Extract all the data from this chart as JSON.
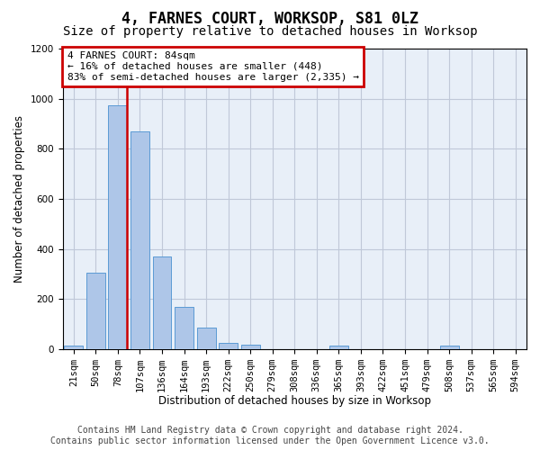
{
  "title": "4, FARNES COURT, WORKSOP, S81 0LZ",
  "subtitle": "Size of property relative to detached houses in Worksop",
  "xlabel": "Distribution of detached houses by size in Worksop",
  "ylabel": "Number of detached properties",
  "bar_labels": [
    "21sqm",
    "50sqm",
    "78sqm",
    "107sqm",
    "136sqm",
    "164sqm",
    "193sqm",
    "222sqm",
    "250sqm",
    "279sqm",
    "308sqm",
    "336sqm",
    "365sqm",
    "393sqm",
    "422sqm",
    "451sqm",
    "479sqm",
    "508sqm",
    "537sqm",
    "565sqm",
    "594sqm"
  ],
  "bar_values": [
    14,
    305,
    975,
    868,
    370,
    170,
    85,
    27,
    18,
    0,
    0,
    0,
    14,
    0,
    0,
    0,
    0,
    14,
    0,
    0,
    0
  ],
  "bar_color": "#aec6e8",
  "bar_edgecolor": "#5b9bd5",
  "vline_bar_index": 2,
  "vline_color": "#cc0000",
  "ylim": [
    0,
    1200
  ],
  "yticks": [
    0,
    200,
    400,
    600,
    800,
    1000,
    1200
  ],
  "annotation_title": "4 FARNES COURT: 84sqm",
  "annotation_line2": "← 16% of detached houses are smaller (448)",
  "annotation_line3": "83% of semi-detached houses are larger (2,335) →",
  "annotation_box_color": "#ffffff",
  "annotation_box_edgecolor": "#cc0000",
  "footer_line1": "Contains HM Land Registry data © Crown copyright and database right 2024.",
  "footer_line2": "Contains public sector information licensed under the Open Government Licence v3.0.",
  "bg_color": "#ffffff",
  "plot_bg_color": "#e8eff8",
  "grid_color": "#c0c8d8",
  "title_fontsize": 12,
  "subtitle_fontsize": 10,
  "label_fontsize": 8.5,
  "tick_fontsize": 7.5,
  "footer_fontsize": 7
}
